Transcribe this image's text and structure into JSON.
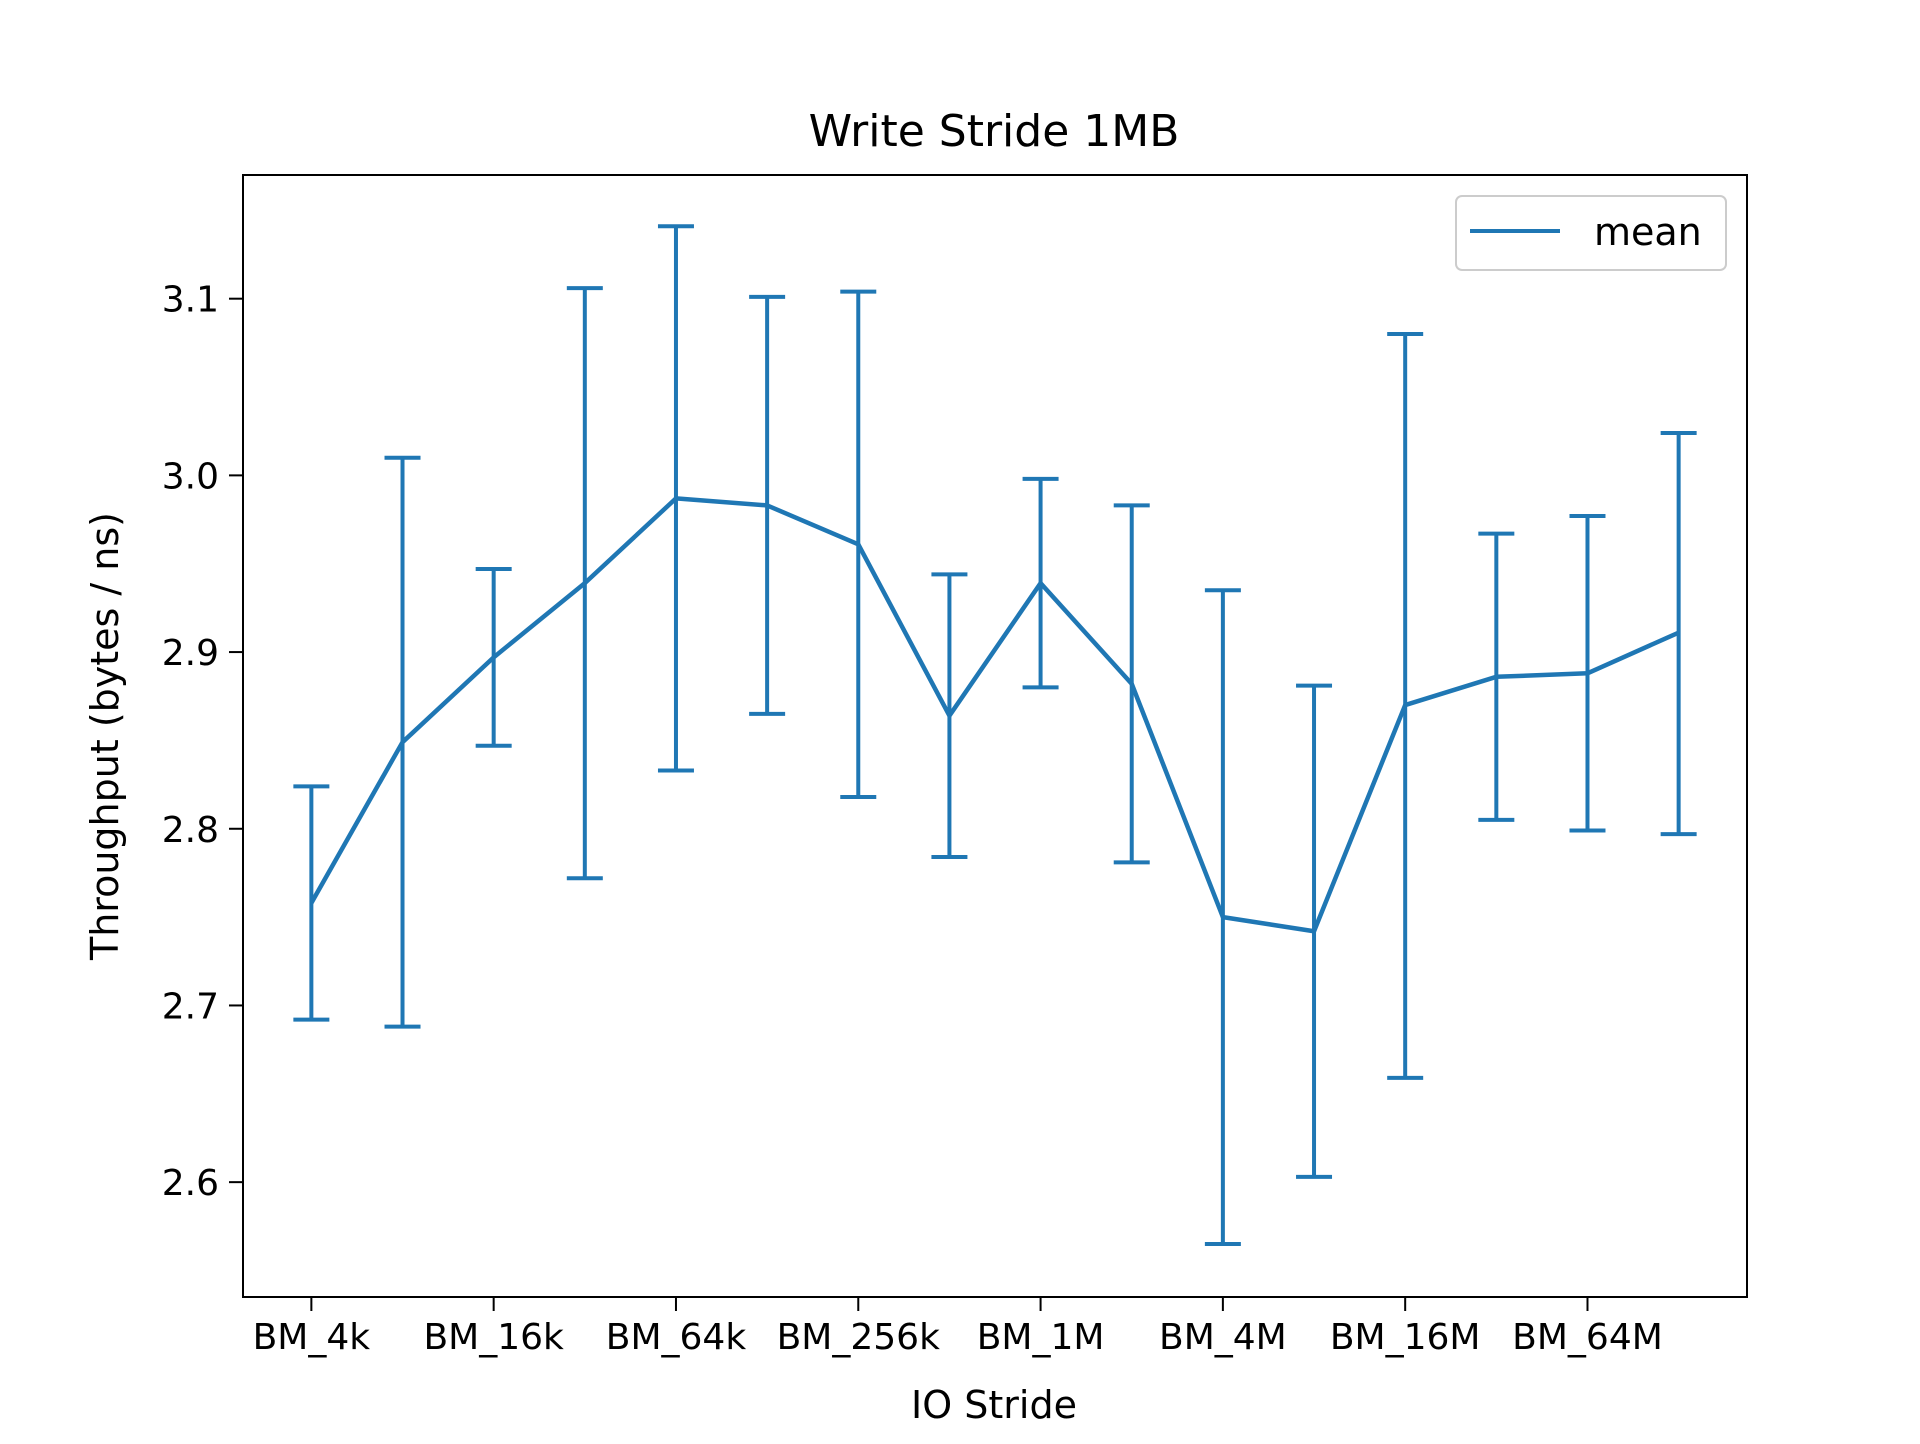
{
  "chart_data": {
    "type": "line",
    "title": "Write Stride 1MB",
    "xlabel": "IO Stride",
    "ylabel": "Throughput (bytes / ns)",
    "x_tick_labels": [
      "BM_4k",
      "BM_16k",
      "BM_64k",
      "BM_256k",
      "BM_1M",
      "BM_4M",
      "BM_16M",
      "BM_64M"
    ],
    "y_ticks": [
      2.6,
      2.7,
      2.8,
      2.9,
      3.0,
      3.1
    ],
    "y_tick_labels": [
      "2.6",
      "2.7",
      "2.8",
      "2.9",
      "3.0",
      "3.1"
    ],
    "ylim": [
      2.535,
      3.17
    ],
    "xlim": [
      -0.75,
      15.75
    ],
    "grid": false,
    "legend_position": "top-right",
    "series": [
      {
        "name": "mean",
        "color": "#1f77b4",
        "x": [
          0,
          1,
          2,
          3,
          4,
          5,
          6,
          7,
          8,
          9,
          10,
          11,
          12,
          13,
          14,
          15
        ],
        "values": [
          2.758,
          2.849,
          2.897,
          2.939,
          2.987,
          2.983,
          2.961,
          2.864,
          2.939,
          2.882,
          2.75,
          2.742,
          2.87,
          2.886,
          2.888,
          2.911
        ],
        "error_low": [
          2.692,
          2.688,
          2.847,
          2.772,
          2.833,
          2.865,
          2.818,
          2.784,
          2.88,
          2.781,
          2.565,
          2.603,
          2.659,
          2.805,
          2.799,
          2.797
        ],
        "error_high": [
          2.824,
          3.01,
          2.947,
          3.106,
          3.141,
          3.101,
          3.104,
          2.944,
          2.998,
          2.983,
          2.935,
          2.881,
          3.08,
          2.967,
          2.977,
          3.024
        ]
      }
    ]
  }
}
